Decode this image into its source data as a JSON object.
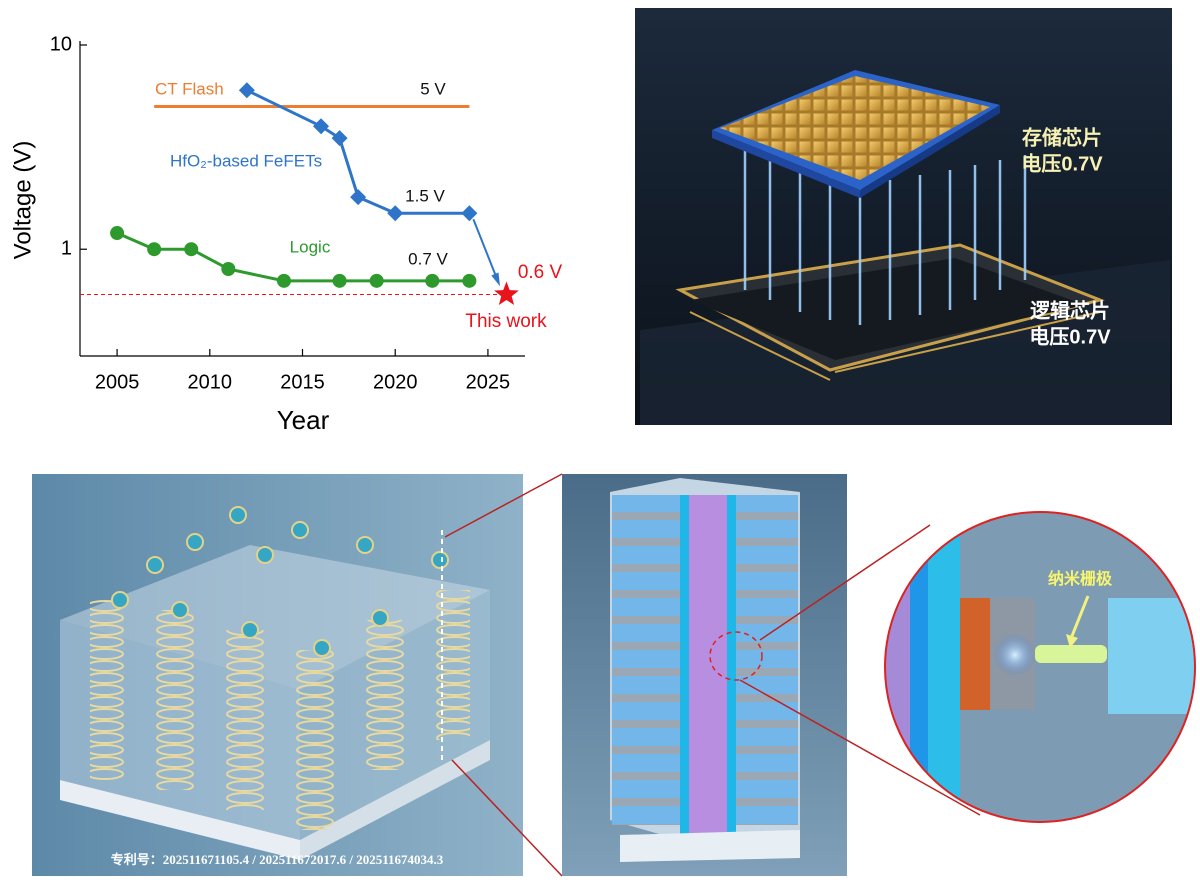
{
  "chart_data": {
    "type": "line",
    "xlabel": "Year",
    "ylabel": "Voltage (V)",
    "xlim": [
      2003,
      2027
    ],
    "xticks": [
      2005,
      2010,
      2015,
      2020,
      2025
    ],
    "ylim": [
      0.3,
      10
    ],
    "yticks": [
      1,
      10
    ],
    "log_y": true,
    "series": [
      {
        "name": "CT Flash",
        "color": "#ed7d31",
        "marker": "none",
        "x": [
          2007,
          2024
        ],
        "values": [
          5,
          5
        ]
      },
      {
        "name": "HfO₂-based FeFETs",
        "color": "#2e75c9",
        "marker": "diamond",
        "x": [
          2012,
          2016,
          2017,
          2018,
          2020,
          2024
        ],
        "values": [
          6,
          4,
          3.5,
          1.8,
          1.5,
          1.5
        ]
      },
      {
        "name": "Logic",
        "color": "#2e9a2e",
        "marker": "circle",
        "x": [
          2005,
          2007,
          2009,
          2011,
          2014,
          2017,
          2019,
          2022,
          2024
        ],
        "values": [
          1.2,
          1,
          1,
          0.8,
          0.7,
          0.7,
          0.7,
          0.7,
          0.7
        ]
      },
      {
        "name": "This work",
        "color": "#e8141c",
        "marker": "star",
        "x": [
          2026
        ],
        "values": [
          0.6
        ]
      }
    ],
    "annotations": [
      {
        "text": "5 V",
        "color": "#111111"
      },
      {
        "text": "1.5 V",
        "color": "#111111"
      },
      {
        "text": "0.7 V",
        "color": "#111111"
      },
      {
        "text": "0.6 V",
        "color": "#e8141c"
      }
    ]
  },
  "illustrations": {
    "memory_chip": "存储芯片",
    "memory_voltage": "电压0.7V",
    "logic_chip": "逻辑芯片",
    "logic_voltage": "电压0.7V",
    "nano_gate": "纳米栅极",
    "patent": "专利号：202511671105.4 / 202511672017.6 / 202511674034.3"
  }
}
